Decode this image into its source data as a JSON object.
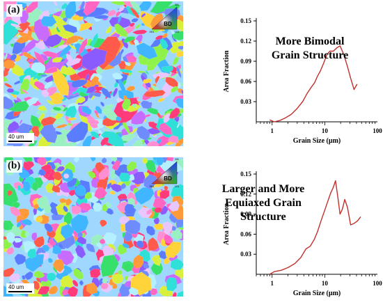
{
  "panels": [
    {
      "label": "(a)",
      "scalebar": "40 um",
      "legend": {
        "top": "111",
        "left": "001",
        "right": "101",
        "center": "BD"
      }
    },
    {
      "label": "(b)",
      "scalebar": "40 um",
      "legend": {
        "top": "111",
        "left": "001",
        "right": "101",
        "center": "BD"
      }
    }
  ],
  "map_palette": [
    "#ff3b7a",
    "#ff66c4",
    "#c86bff",
    "#8a5cff",
    "#5a7dff",
    "#3fb6ff",
    "#2fe0d8",
    "#37e06a",
    "#8ff24a",
    "#d8f03c",
    "#ffd43a",
    "#ff9a3a",
    "#ff5a4a",
    "#e8c6ff",
    "#b4f0ff",
    "#9af0c0",
    "#ff8fd0",
    "#6f8cff"
  ],
  "chart_data": [
    {
      "type": "line",
      "xscale": "log",
      "xlim": [
        0.5,
        100
      ],
      "ylim": [
        0,
        0.15
      ],
      "x_ticks": [
        1,
        10,
        100
      ],
      "x_tick_labels": [
        "1",
        "10",
        "100"
      ],
      "y_ticks": [
        0.03,
        0.06,
        0.09,
        0.12,
        0.15
      ],
      "y_tick_labels": [
        "0.03",
        "0.06",
        "0.09",
        "0.12",
        "0.15"
      ],
      "xlabel": "Grain Size (µm)",
      "ylabel": "Area Fraction",
      "annotation": [
        "More Bimodal",
        "Grain Structure"
      ],
      "line_color": "#c0302b",
      "series": [
        {
          "x": [
            0.9,
            1.1,
            1.4,
            1.8,
            2.3,
            3.0,
            3.8,
            4.6,
            5.5,
            6.4,
            7.3,
            8.3,
            9.5,
            11.0,
            12.5,
            14.5,
            17.0,
            19.5,
            23.0,
            27.0,
            31.0,
            36.0,
            41.0
          ],
          "y": [
            0.003,
            0.0,
            0.002,
            0.006,
            0.011,
            0.02,
            0.03,
            0.042,
            0.051,
            0.058,
            0.068,
            0.076,
            0.087,
            0.1,
            0.105,
            0.105,
            0.11,
            0.113,
            0.1,
            0.082,
            0.065,
            0.048,
            0.056
          ]
        }
      ]
    },
    {
      "type": "line",
      "xscale": "log",
      "xlim": [
        0.5,
        100
      ],
      "ylim": [
        0,
        0.15
      ],
      "x_ticks": [
        1,
        10,
        100
      ],
      "x_tick_labels": [
        "1",
        "10",
        "100"
      ],
      "y_ticks": [
        0.03,
        0.06,
        0.09,
        0.12,
        0.15
      ],
      "y_tick_labels": [
        "0.03",
        "0.06",
        "0.09",
        "0.12",
        "0.15"
      ],
      "xlabel": "Grain Size (µm)",
      "ylabel": "Area Fraction",
      "annotation": [
        "Larger and More",
        "Equiaxed Grain",
        "Structure"
      ],
      "line_color": "#c0302b",
      "series": [
        {
          "x": [
            0.9,
            1.1,
            1.5,
            2.0,
            2.7,
            3.5,
            4.4,
            5.3,
            6.3,
            7.3,
            8.5,
            10.0,
            11.5,
            13.0,
            14.5,
            16.0,
            17.5,
            19.5,
            21.5,
            24.0,
            27.0,
            31.0,
            36.0,
            42.0,
            48.0
          ],
          "y": [
            0.0,
            0.004,
            0.006,
            0.01,
            0.016,
            0.025,
            0.038,
            0.042,
            0.052,
            0.064,
            0.08,
            0.096,
            0.11,
            0.122,
            0.13,
            0.14,
            0.118,
            0.09,
            0.097,
            0.112,
            0.1,
            0.074,
            0.076,
            0.08,
            0.086
          ]
        }
      ]
    }
  ]
}
